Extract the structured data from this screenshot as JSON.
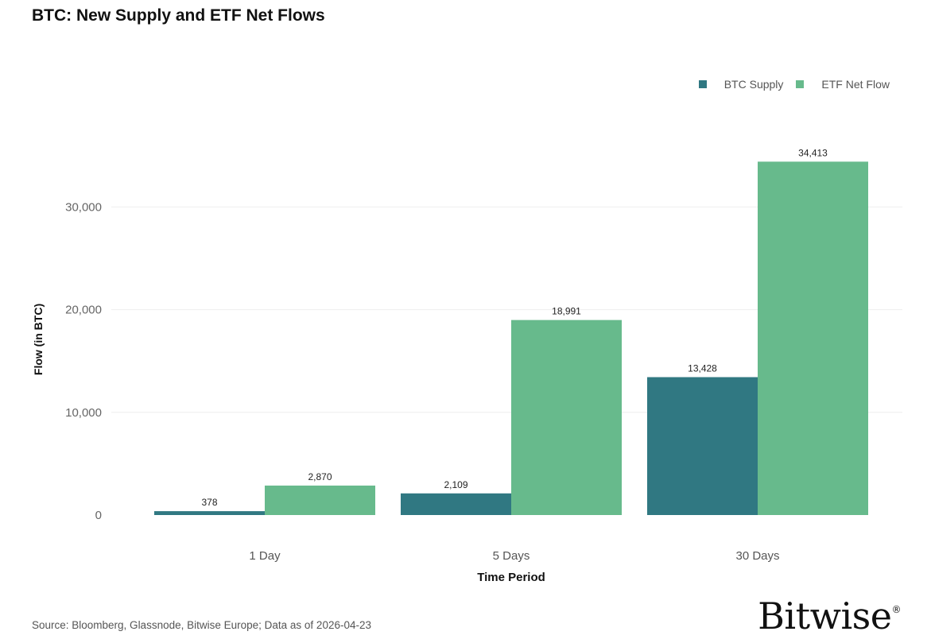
{
  "title": "BTC: New Supply and ETF Net Flows",
  "source": "Source: Bloomberg, Glassnode, Bitwise Europe; Data as of 2026-04-23",
  "logo": "Bitwise",
  "logo_mark": "®",
  "colors": {
    "btc_supply": "#307882",
    "etf_net_flow": "#67ba8c",
    "grid": "#eeeeee",
    "axis_text": "#666666"
  },
  "chart_data": {
    "type": "bar",
    "title": "BTC: New Supply and ETF Net Flows",
    "xlabel": "Time Period",
    "ylabel": "Flow (in BTC)",
    "categories": [
      "1 Day",
      "5 Days",
      "30 Days"
    ],
    "series": [
      {
        "name": "BTC Supply",
        "values": [
          378,
          2109,
          13428
        ],
        "labels": [
          "378",
          "2,109",
          "13,428"
        ]
      },
      {
        "name": "ETF Net Flow",
        "values": [
          2870,
          18991,
          34413
        ],
        "labels": [
          "2,870",
          "18,991",
          "34,413"
        ]
      }
    ],
    "yticks": [
      0,
      10000,
      20000,
      30000
    ],
    "ytick_labels": [
      "0",
      "10,000",
      "20,000",
      "30,000"
    ],
    "ylim": [
      0,
      38000
    ],
    "grid": true,
    "legend": "top-right"
  }
}
